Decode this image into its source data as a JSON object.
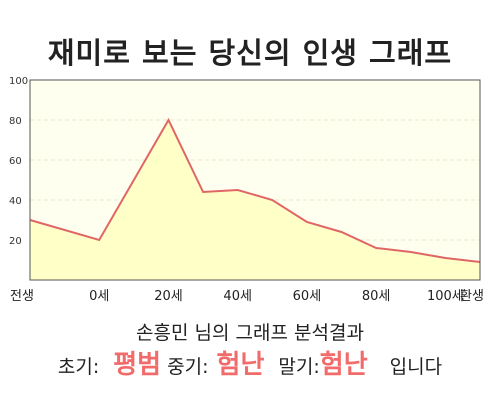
{
  "title": "재미로 보는 당신의 인생 그래프",
  "summary": "손흥민 님의 그래프 분석결과",
  "verdict": {
    "early_label": "초기:",
    "early_value": "평범",
    "mid_label": "중기:",
    "mid_value": "험난",
    "late_label": "말기:",
    "late_value": "험난",
    "suffix": "입니다"
  },
  "colors": {
    "line": "#e06666",
    "fill": "#ffffc8",
    "plot_bg": "#fffff0",
    "grid": "#e8e8c8",
    "highlight": "#f26b6b"
  },
  "chart_data": {
    "type": "area",
    "x_tick_labels": [
      "전생",
      "0세",
      "20세",
      "40세",
      "60세",
      "80세",
      "100세",
      "환생"
    ],
    "y_tick_labels": [
      "100",
      "80",
      "60",
      "40",
      "20"
    ],
    "x": [
      -20,
      0,
      20,
      30,
      40,
      50,
      60,
      70,
      80,
      90,
      100,
      110
    ],
    "y": [
      30,
      20,
      80,
      44,
      45,
      40,
      29,
      24,
      16,
      14,
      11,
      9
    ],
    "xlim": [
      -20,
      110
    ],
    "ylim": [
      0,
      100
    ],
    "grid": true,
    "xlabel": "",
    "ylabel": ""
  }
}
